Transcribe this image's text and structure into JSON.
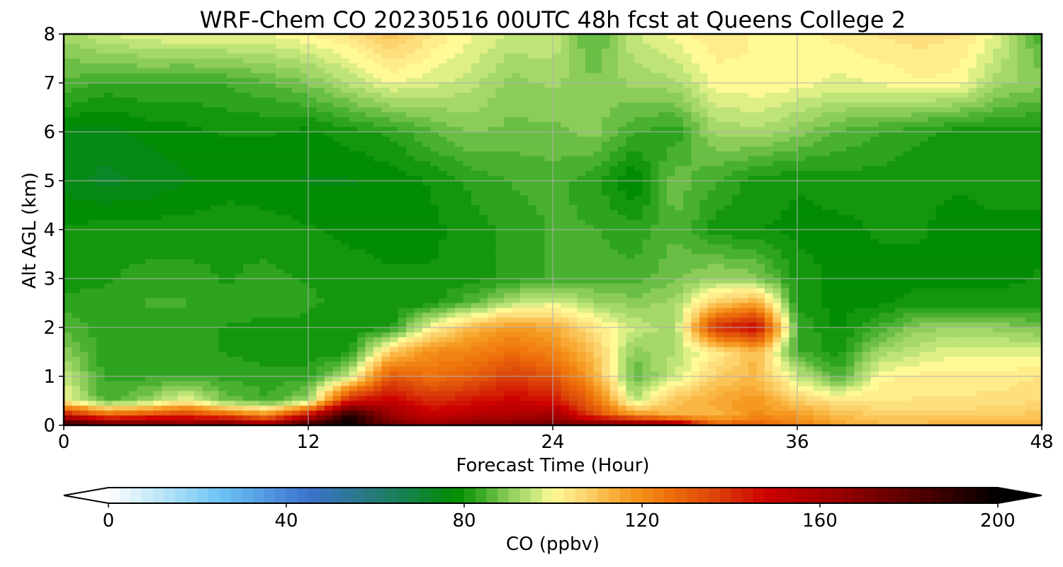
{
  "chart_data": {
    "type": "heatmap",
    "title": "WRF-Chem CO  20230516 00UTC 48h fcst at Queens College 2",
    "xlabel": "Forecast Time (Hour)",
    "ylabel": "Alt AGL (km)",
    "xlim": [
      0,
      48
    ],
    "ylim": [
      0,
      8
    ],
    "x_ticks": [
      "0",
      "12",
      "24",
      "36",
      "48"
    ],
    "y_ticks": [
      "0",
      "1",
      "2",
      "3",
      "4",
      "5",
      "6",
      "7",
      "8"
    ],
    "grid": true,
    "colorbar": {
      "label": "CO  (ppbv)",
      "range": [
        0,
        200
      ],
      "ticks": [
        "0",
        "40",
        "80",
        "120",
        "160",
        "200"
      ],
      "extend": "both",
      "orientation": "horizontal",
      "placement": "bottom"
    },
    "x_hours": [
      0,
      2,
      4,
      6,
      8,
      10,
      12,
      14,
      16,
      18,
      20,
      22,
      24,
      26,
      28,
      30,
      32,
      34,
      36,
      38,
      40,
      42,
      44,
      46,
      48
    ],
    "z_km": [
      0,
      0.2,
      0.5,
      1,
      1.5,
      2,
      2.5,
      3,
      4,
      5,
      6,
      7,
      8
    ],
    "values_ppbv": [
      [
        195,
        180,
        180,
        170,
        180,
        165,
        190,
        200,
        175,
        165,
        170,
        172,
        175,
        175,
        172,
        165,
        130,
        130,
        122,
        115,
        112,
        112,
        115,
        115,
        115
      ],
      [
        150,
        130,
        135,
        140,
        130,
        120,
        150,
        195,
        165,
        150,
        155,
        158,
        162,
        135,
        120,
        112,
        112,
        120,
        118,
        112,
        108,
        108,
        108,
        108,
        110
      ],
      [
        100,
        85,
        90,
        100,
        88,
        84,
        92,
        145,
        150,
        140,
        145,
        148,
        145,
        128,
        95,
        110,
        115,
        118,
        108,
        104,
        104,
        104,
        104,
        105,
        106
      ],
      [
        96,
        83,
        83,
        83,
        83,
        82,
        82,
        95,
        132,
        126,
        130,
        138,
        132,
        115,
        86,
        96,
        108,
        112,
        96,
        84,
        100,
        102,
        102,
        102,
        104
      ],
      [
        90,
        82,
        82,
        82,
        81,
        80,
        80,
        80,
        108,
        120,
        122,
        126,
        122,
        110,
        90,
        94,
        102,
        112,
        84,
        80,
        92,
        96,
        98,
        98,
        98
      ],
      [
        86,
        82,
        82,
        83,
        81,
        80,
        80,
        79,
        80,
        100,
        112,
        118,
        114,
        104,
        96,
        92,
        140,
        150,
        84,
        78,
        84,
        90,
        92,
        90,
        88
      ],
      [
        82,
        82,
        84,
        84,
        82,
        84,
        82,
        80,
        79,
        80,
        86,
        94,
        98,
        92,
        90,
        92,
        108,
        115,
        80,
        78,
        78,
        80,
        80,
        80,
        80
      ],
      [
        80,
        81,
        82,
        82,
        81,
        82,
        81,
        80,
        79,
        79,
        80,
        82,
        84,
        85,
        85,
        88,
        92,
        90,
        80,
        78,
        78,
        78,
        78,
        78,
        79
      ],
      [
        79,
        80,
        80,
        80,
        81,
        80,
        79,
        78,
        78,
        78,
        80,
        82,
        84,
        84,
        82,
        86,
        80,
        79,
        78,
        78,
        79,
        79,
        78,
        78,
        78
      ],
      [
        75,
        73,
        74,
        76,
        77,
        77,
        76,
        76,
        77,
        79,
        82,
        84,
        85,
        82,
        76,
        88,
        84,
        80,
        79,
        80,
        80,
        79,
        79,
        80,
        80
      ],
      [
        76,
        75,
        77,
        78,
        79,
        79,
        78,
        80,
        82,
        86,
        89,
        88,
        88,
        90,
        84,
        82,
        92,
        93,
        90,
        86,
        84,
        82,
        80,
        80,
        80
      ],
      [
        86,
        83,
        84,
        83,
        84,
        86,
        89,
        94,
        99,
        97,
        95,
        90,
        92,
        89,
        92,
        93,
        100,
        101,
        100,
        98,
        99,
        101,
        100,
        92,
        90
      ],
      [
        92,
        96,
        98,
        99,
        99,
        99,
        101,
        104,
        110,
        104,
        99,
        96,
        96,
        85,
        96,
        100,
        103,
        101,
        100,
        102,
        104,
        105,
        104,
        97,
        84
      ]
    ]
  }
}
